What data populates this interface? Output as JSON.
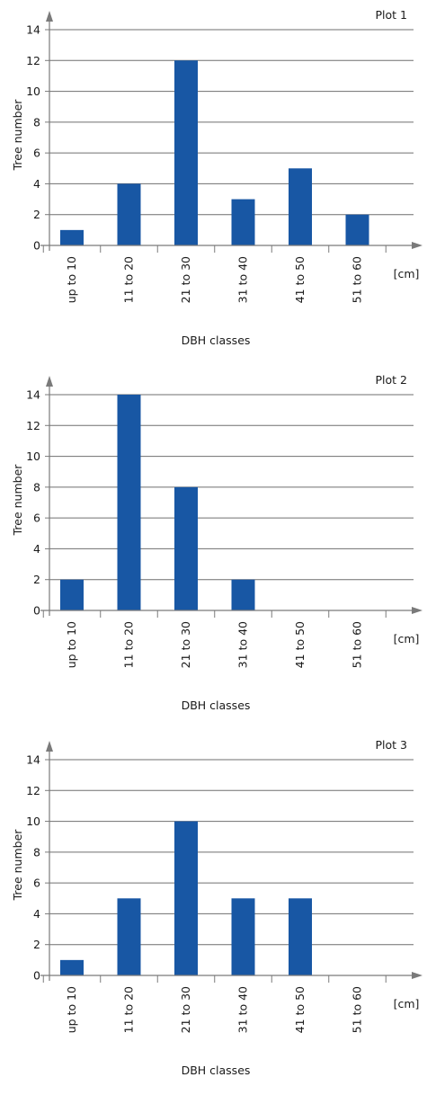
{
  "chart_data": [
    {
      "type": "bar",
      "title": "Plot 1",
      "categories": [
        "up to 10",
        "11 to 20",
        "21 to 30",
        "31 to 40",
        "41 to 50",
        "51 to 60"
      ],
      "values": [
        1,
        4,
        12,
        3,
        5,
        2
      ],
      "xlabel": "DBH classes",
      "ylabel": "Tree number",
      "unit_label": "[cm]",
      "ylim": [
        0,
        14
      ],
      "yticks": [
        0,
        2,
        4,
        6,
        8,
        10,
        12,
        14
      ],
      "grid": true,
      "bar_color": "#1857a4"
    },
    {
      "type": "bar",
      "title": "Plot 2",
      "categories": [
        "up to 10",
        "11 to 20",
        "21 to 30",
        "31 to 40",
        "41 to 50",
        "51 to 60"
      ],
      "values": [
        2,
        14,
        8,
        2,
        0,
        0
      ],
      "xlabel": "DBH classes",
      "ylabel": "Tree number",
      "unit_label": "[cm]",
      "ylim": [
        0,
        14
      ],
      "yticks": [
        0,
        2,
        4,
        6,
        8,
        10,
        12,
        14
      ],
      "grid": true,
      "bar_color": "#1857a4"
    },
    {
      "type": "bar",
      "title": "Plot 3",
      "categories": [
        "up to 10",
        "11 to 20",
        "21 to 30",
        "31 to 40",
        "41 to 50",
        "51 to 60"
      ],
      "values": [
        1,
        5,
        10,
        5,
        5,
        0
      ],
      "xlabel": "DBH classes",
      "ylabel": "Tree number",
      "unit_label": "[cm]",
      "ylim": [
        0,
        14
      ],
      "yticks": [
        0,
        2,
        4,
        6,
        8,
        10,
        12,
        14
      ],
      "grid": true,
      "bar_color": "#1857a4"
    }
  ],
  "colors": {
    "bar": "#1857a4",
    "grid": "#6f6f6f",
    "axis": "#7a7a7a",
    "text": "#1a1a1a"
  }
}
